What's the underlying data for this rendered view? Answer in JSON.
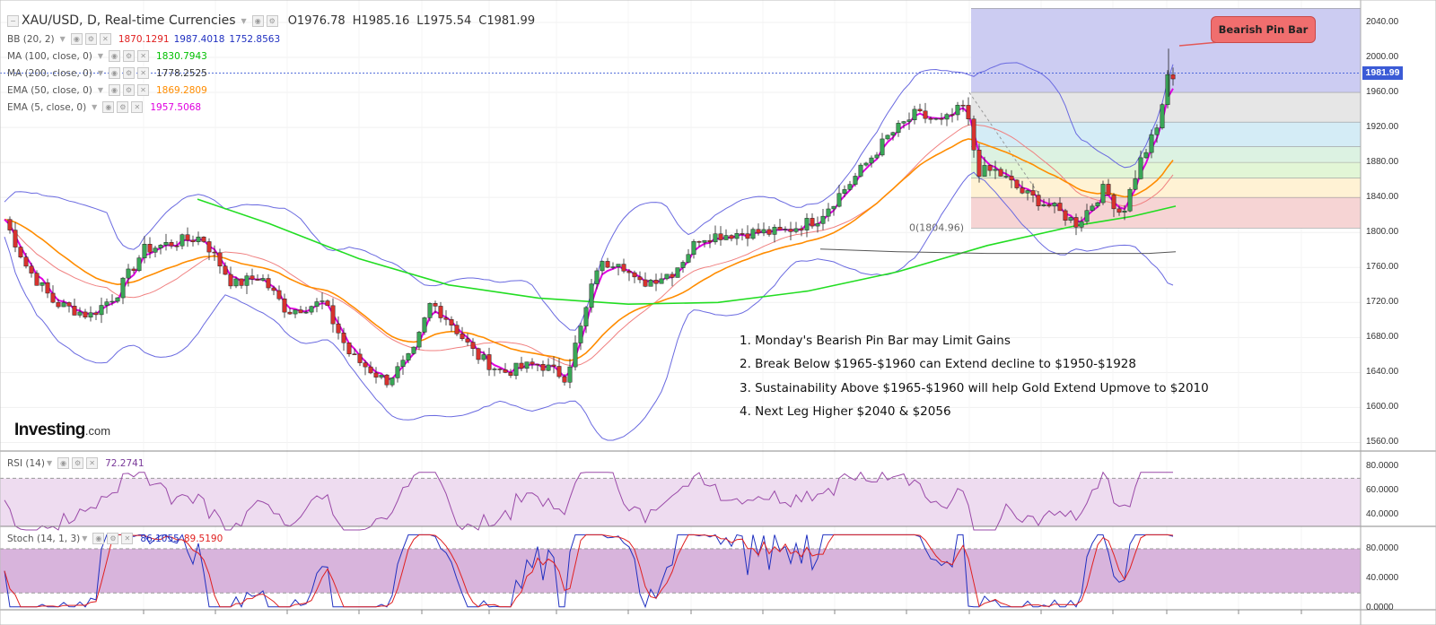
{
  "header": {
    "symbol": "XAU/USD, D, Real-time Currencies",
    "open": "O1976.78",
    "high": "H1985.16",
    "low": "L1975.54",
    "close": "C1981.99"
  },
  "indicators": [
    {
      "name": "BB (20, 2)",
      "values": [
        "1870.1291",
        "1987.4018",
        "1752.8563"
      ],
      "colors": [
        "#e02020",
        "#2030c0",
        "#2030c0"
      ]
    },
    {
      "name": "MA (100, close, 0)",
      "values": [
        "1830.7943"
      ],
      "colors": [
        "#00c000"
      ]
    },
    {
      "name": "MA (200, close, 0)",
      "values": [
        "1778.2525"
      ],
      "colors": [
        "#333333"
      ]
    },
    {
      "name": "EMA (50, close, 0)",
      "values": [
        "1869.2809"
      ],
      "colors": [
        "#ff8c00"
      ]
    },
    {
      "name": "EMA (5, close, 0)",
      "values": [
        "1957.5068"
      ],
      "colors": [
        "#e000e0"
      ]
    }
  ],
  "rsi": {
    "name": "RSI (14)",
    "value": "72.2741",
    "value_color": "#7a3a9a"
  },
  "stoch": {
    "name": "Stoch (14, 1, 3)",
    "k": "86.1055",
    "d": "89.5190",
    "k_color": "#2030c0",
    "d_color": "#e02020"
  },
  "brand": {
    "main": "Investing",
    "suffix": ".com"
  },
  "callout": "Bearish Pin Bar",
  "fib_label": "0(1804.96)",
  "current_price": "1981.99",
  "price_axis": [
    "2040.00",
    "2000.00",
    "1960.00",
    "1920.00",
    "1880.00",
    "1840.00",
    "1800.00",
    "1760.00",
    "1720.00",
    "1680.00",
    "1640.00",
    "1600.00",
    "1560.00"
  ],
  "rsi_axis": [
    "80.0000",
    "60.0000",
    "40.0000"
  ],
  "stoch_axis": [
    "80.0000",
    "40.0000",
    "0.0000"
  ],
  "notes": [
    "1. Monday's Bearish Pin Bar may Limit Gains",
    "2. Break Below $1965-$1960 can Extend decline to $1950-$1928",
    "3. Sustainability Above $1965-$1960 will help Gold Extend Upmove to $2010",
    "4. Next Leg Higher $2040 & $2056"
  ],
  "colors": {
    "up_candle": "#3aa757",
    "down_candle": "#d8322e",
    "bb": "#6a6ae0",
    "bb_mid": "#f08080",
    "ema50": "#ff8c00",
    "ema5": "#e000e0",
    "ma100": "#22dd22",
    "ma200": "#555555",
    "rsi_band": "#eedcf0",
    "stoch_band": "#d8b4dc"
  },
  "chart_data": {
    "type": "candlestick",
    "ylim": [
      1560,
      2060
    ],
    "annotations": [
      "Bearish Pin Bar",
      "0(1804.96)"
    ],
    "last_close": 1981.99,
    "fib_levels": [
      2056,
      1960,
      1926,
      1898,
      1880,
      1862,
      1840,
      1805
    ]
  }
}
